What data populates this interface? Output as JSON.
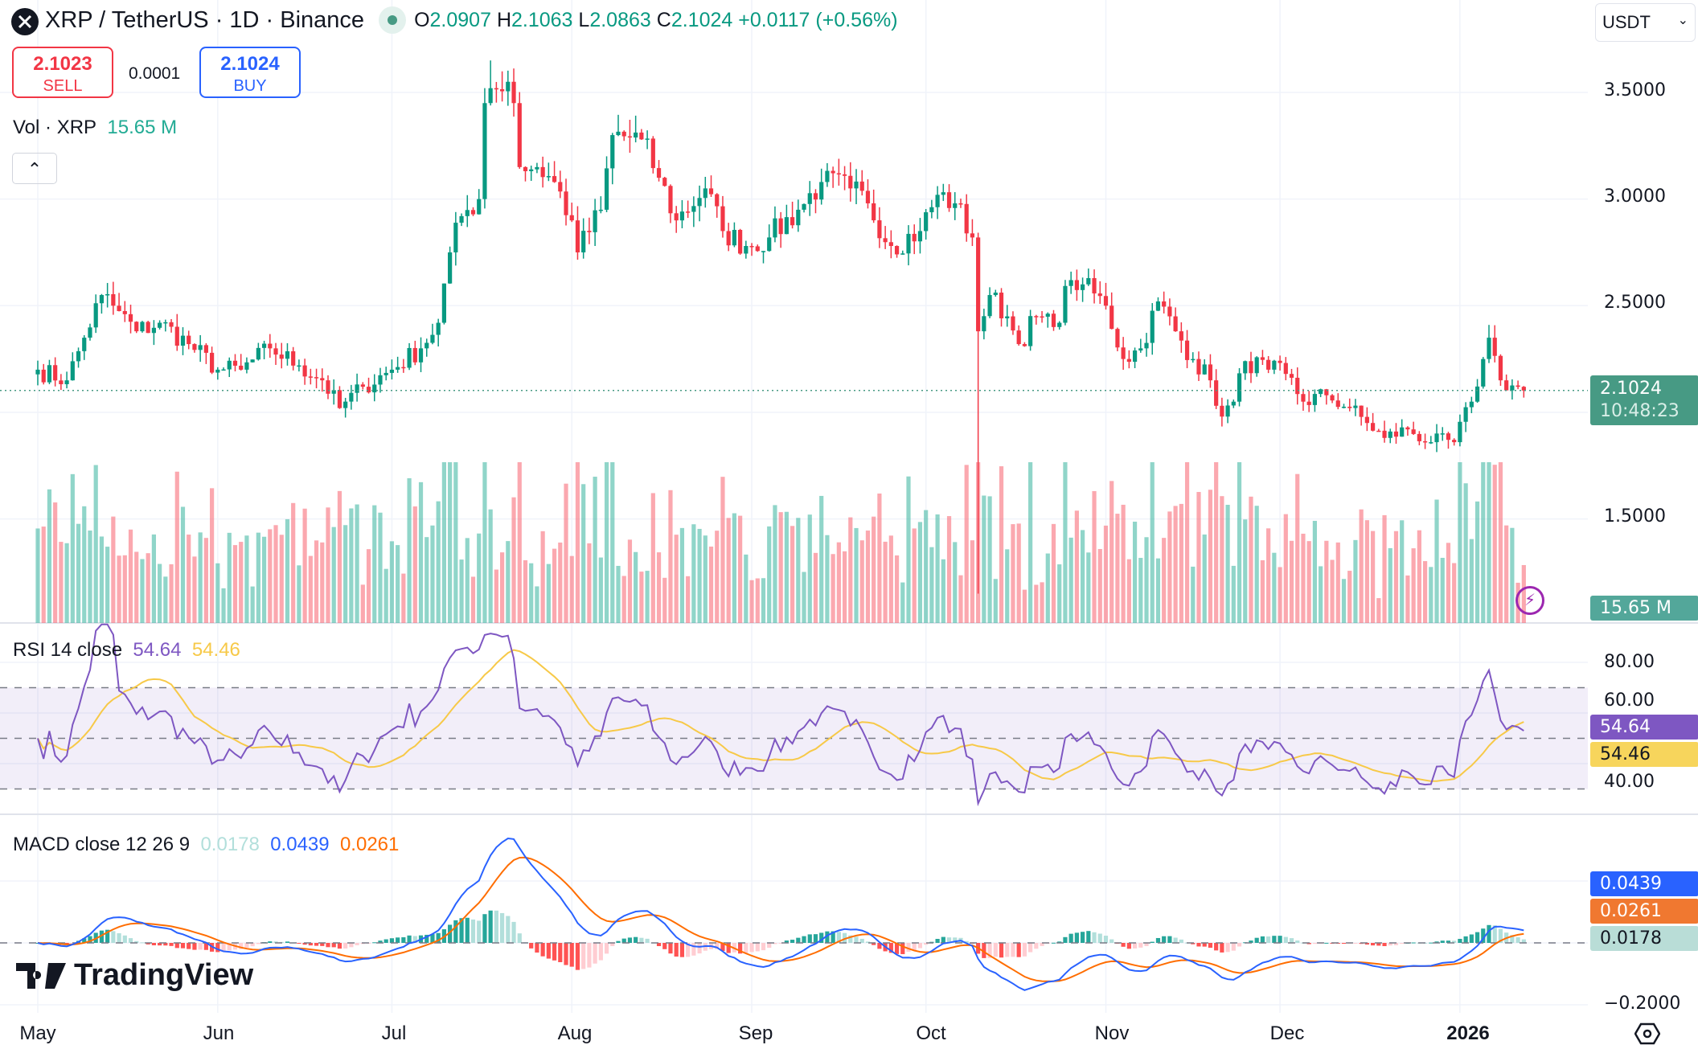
{
  "header": {
    "symbol": "XRP / TetherUS · 1D · Binance",
    "open_label": "O",
    "open": "2.0907",
    "high_label": "H",
    "high": "2.1063",
    "low_label": "L",
    "low": "2.0863",
    "close_label": "C",
    "close": "2.1024",
    "change": "+0.0117 (+0.56%)"
  },
  "trade": {
    "sell_price": "2.1023",
    "sell_label": "SELL",
    "spread": "0.0001",
    "buy_price": "2.1024",
    "buy_label": "BUY"
  },
  "volume_legend": {
    "label": "Vol · XRP",
    "value": "15.65 M"
  },
  "rsi_legend": {
    "label": "RSI 14 close",
    "rsi": "54.64",
    "ma": "54.46"
  },
  "macd_legend": {
    "label": "MACD close 12 26 9",
    "hist": "0.0178",
    "macd": "0.0439",
    "signal": "0.0261"
  },
  "currency_select": "USDT",
  "price_axis": {
    "ticks": [
      "3.5000",
      "3.0000",
      "2.5000",
      "1.5000"
    ],
    "last_price": "2.1024",
    "countdown": "10:48:23",
    "volume_tag": "15.65 M"
  },
  "rsi_axis": {
    "ticks": [
      "80.00",
      "60.00",
      "40.00"
    ],
    "rsi_tag": "54.64",
    "ma_tag": "54.46"
  },
  "macd_axis": {
    "ticks": [
      "−0.2000"
    ],
    "macd_tag": "0.0439",
    "signal_tag": "0.0261",
    "hist_tag": "0.0178"
  },
  "time_axis": {
    "labels": [
      "May",
      "Jun",
      "Jul",
      "Aug",
      "Sep",
      "Oct",
      "Nov",
      "Dec",
      "2026"
    ]
  },
  "brand": "TradingView",
  "colors": {
    "up": "#089981",
    "down": "#f23645",
    "rsi": "#7e57c2",
    "rsi_ma": "#f7c948",
    "macd": "#2962ff",
    "signal": "#ff6d00",
    "last_price_tag": "#479a84"
  },
  "chart_data": {
    "type": "candlestick",
    "symbol": "XRPUSDT",
    "interval": "1D",
    "price_ylim": [
      1.0,
      3.75
    ],
    "last_price": 2.1024,
    "close_keypoints": [
      [
        "2025-05-01",
        2.2
      ],
      [
        "2025-05-06",
        2.15
      ],
      [
        "2025-05-09",
        2.35
      ],
      [
        "2025-05-12",
        2.55
      ],
      [
        "2025-05-14",
        2.5
      ],
      [
        "2025-05-18",
        2.38
      ],
      [
        "2025-05-22",
        2.42
      ],
      [
        "2025-05-27",
        2.32
      ],
      [
        "2025-06-01",
        2.2
      ],
      [
        "2025-06-05",
        2.2
      ],
      [
        "2025-06-10",
        2.3
      ],
      [
        "2025-06-15",
        2.22
      ],
      [
        "2025-06-19",
        2.15
      ],
      [
        "2025-06-22",
        2.02
      ],
      [
        "2025-06-26",
        2.12
      ],
      [
        "2025-07-01",
        2.2
      ],
      [
        "2025-07-06",
        2.3
      ],
      [
        "2025-07-09",
        2.42
      ],
      [
        "2025-07-11",
        2.75
      ],
      [
        "2025-07-13",
        2.92
      ],
      [
        "2025-07-16",
        3.0
      ],
      [
        "2025-07-17",
        3.45
      ],
      [
        "2025-07-18",
        3.52
      ],
      [
        "2025-07-21",
        3.55
      ],
      [
        "2025-07-22",
        3.45
      ],
      [
        "2025-07-23",
        3.15
      ],
      [
        "2025-07-26",
        3.15
      ],
      [
        "2025-07-29",
        3.08
      ],
      [
        "2025-08-01",
        2.9
      ],
      [
        "2025-08-02",
        2.75
      ],
      [
        "2025-08-06",
        2.95
      ],
      [
        "2025-08-08",
        3.3
      ],
      [
        "2025-08-13",
        3.28
      ],
      [
        "2025-08-16",
        3.1
      ],
      [
        "2025-08-19",
        2.9
      ],
      [
        "2025-08-24",
        3.05
      ],
      [
        "2025-08-27",
        2.85
      ],
      [
        "2025-08-31",
        2.78
      ],
      [
        "2025-09-04",
        2.82
      ],
      [
        "2025-09-09",
        2.95
      ],
      [
        "2025-09-13",
        3.08
      ],
      [
        "2025-09-18",
        3.05
      ],
      [
        "2025-09-21",
        2.98
      ],
      [
        "2025-09-25",
        2.78
      ],
      [
        "2025-09-30",
        2.85
      ],
      [
        "2025-10-03",
        3.02
      ],
      [
        "2025-10-06",
        2.98
      ],
      [
        "2025-10-09",
        2.82
      ],
      [
        "2025-10-10",
        2.38
      ],
      [
        "2025-10-12",
        2.55
      ],
      [
        "2025-10-15",
        2.45
      ],
      [
        "2025-10-17",
        2.32
      ],
      [
        "2025-10-20",
        2.45
      ],
      [
        "2025-10-23",
        2.4
      ],
      [
        "2025-10-26",
        2.62
      ],
      [
        "2025-10-28",
        2.6
      ],
      [
        "2025-11-01",
        2.5
      ],
      [
        "2025-11-04",
        2.25
      ],
      [
        "2025-11-07",
        2.3
      ],
      [
        "2025-11-10",
        2.52
      ],
      [
        "2025-11-13",
        2.38
      ],
      [
        "2025-11-16",
        2.25
      ],
      [
        "2025-11-19",
        2.15
      ],
      [
        "2025-11-21",
        1.98
      ],
      [
        "2025-11-23",
        2.05
      ],
      [
        "2025-11-25",
        2.24
      ],
      [
        "2025-11-29",
        2.2
      ],
      [
        "2025-12-02",
        2.18
      ],
      [
        "2025-12-05",
        2.05
      ],
      [
        "2025-12-09",
        2.08
      ],
      [
        "2025-12-13",
        2.02
      ],
      [
        "2025-12-16",
        1.95
      ],
      [
        "2025-12-19",
        1.88
      ],
      [
        "2025-12-23",
        1.92
      ],
      [
        "2025-12-27",
        1.86
      ],
      [
        "2025-12-31",
        1.86
      ],
      [
        "2026-01-03",
        2.05
      ],
      [
        "2026-01-05",
        2.25
      ],
      [
        "2026-01-06",
        2.35
      ],
      [
        "2026-01-08",
        2.15
      ],
      [
        "2026-01-12",
        2.1024
      ]
    ],
    "notable_extremes": [
      {
        "date": "2025-07-18",
        "high": 3.65
      },
      {
        "date": "2025-10-10",
        "low": 1.15
      },
      {
        "date": "2026-01-06",
        "high": 2.41
      }
    ],
    "indicators": [
      {
        "name": "Vol · XRP",
        "last": "15.65 M"
      },
      {
        "name": "RSI 14 close",
        "last": 54.64,
        "ma_last": 54.46,
        "bands": [
          70,
          50,
          30
        ],
        "ylim": [
          20,
          90
        ]
      },
      {
        "name": "MACD close 12 26 9",
        "histogram": 0.0178,
        "macd": 0.0439,
        "signal": 0.0261
      }
    ],
    "x_range": [
      "2025-05-01",
      "2026-01-12"
    ]
  }
}
